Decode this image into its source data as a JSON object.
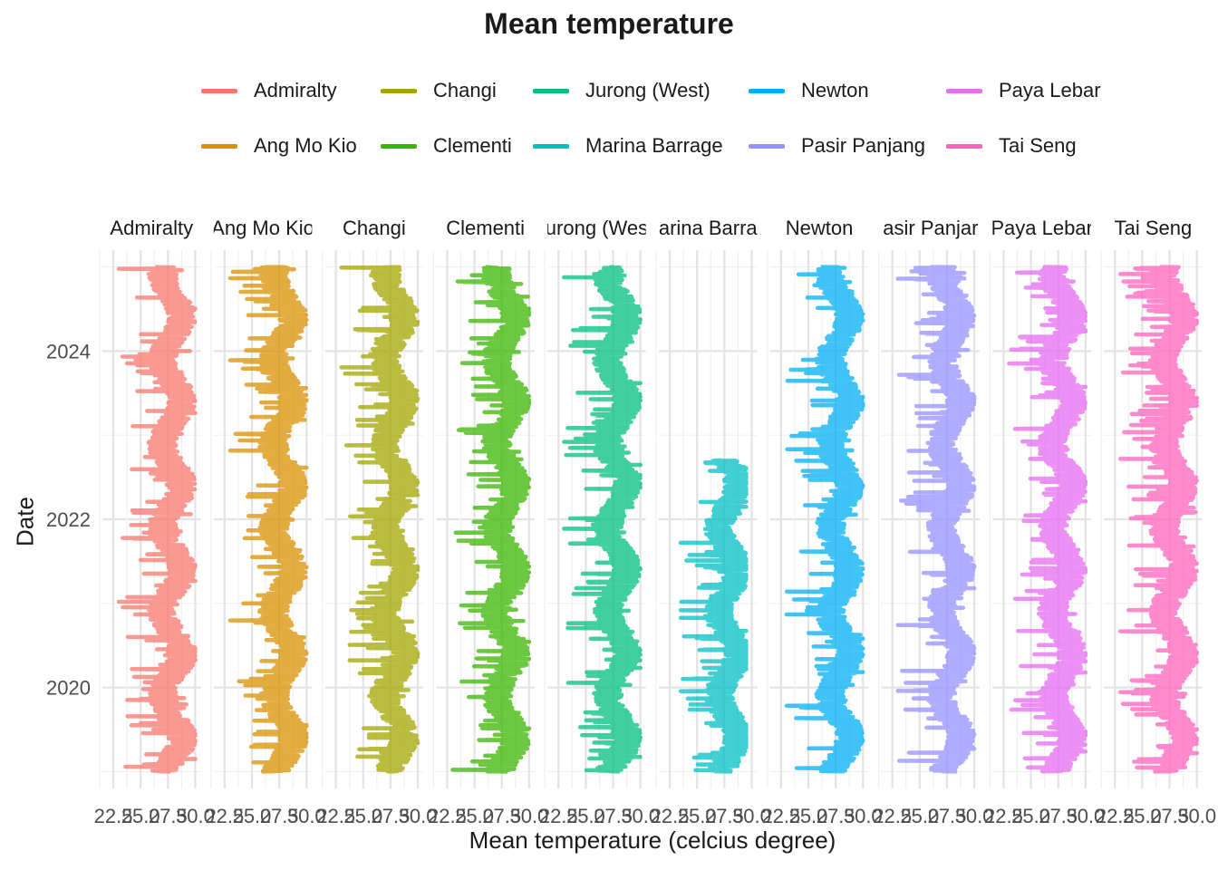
{
  "chart_data": {
    "type": "line",
    "title": "Mean temperature",
    "xlabel": "Mean temperature (celcius degree)",
    "ylabel": "Date",
    "facets": [
      "Admiralty",
      "Ang Mo Kio",
      "Changi",
      "Clementi",
      "Jurong (West)",
      "Marina Barrage",
      "Newton",
      "Pasir Panjang",
      "Paya Lebar",
      "Tai Seng"
    ],
    "facet_strip_labels": [
      "Admiralty",
      "Ang Mo Kio",
      "Changi",
      "Clementi",
      "urong (Wes",
      "arina Barra",
      "Newton",
      "asir Panjar",
      "Paya Lebar",
      "Tai Seng"
    ],
    "x_tick_labels": [
      "22.5",
      "25.0",
      "27.5",
      "30.0"
    ],
    "x_tick_values": [
      22.5,
      25.0,
      27.5,
      30.0
    ],
    "y_tick_labels": [
      "2020",
      "2022",
      "2024"
    ],
    "y_tick_values": [
      2020,
      2022,
      2024
    ],
    "xlim": [
      21.5,
      30.5
    ],
    "ylim": [
      2018.8,
      2025.2
    ],
    "grid": true,
    "legend_position": "top",
    "series": [
      {
        "name": "Admiralty",
        "color": "#F8766D",
        "date_range": [
          2019.0,
          2025.0
        ],
        "temperature_range": [
          23.0,
          30.0
        ]
      },
      {
        "name": "Ang Mo Kio",
        "color": "#D89000",
        "date_range": [
          2019.0,
          2025.0
        ],
        "temperature_range": [
          23.0,
          30.0
        ]
      },
      {
        "name": "Changi",
        "color": "#A3A500",
        "date_range": [
          2019.0,
          2025.0
        ],
        "temperature_range": [
          23.0,
          30.0
        ]
      },
      {
        "name": "Clementi",
        "color": "#39B600",
        "date_range": [
          2019.0,
          2025.0
        ],
        "temperature_range": [
          23.0,
          30.0
        ]
      },
      {
        "name": "Jurong (West)",
        "color": "#00BF7D",
        "date_range": [
          2019.0,
          2025.0
        ],
        "temperature_range": [
          23.0,
          30.0
        ]
      },
      {
        "name": "Marina Barrage",
        "color": "#00BFC4",
        "date_range": [
          2019.0,
          2022.7
        ],
        "temperature_range": [
          23.5,
          29.5
        ]
      },
      {
        "name": "Newton",
        "color": "#00B0F6",
        "date_range": [
          2019.0,
          2025.0
        ],
        "temperature_range": [
          23.0,
          30.0
        ]
      },
      {
        "name": "Pasir Panjang",
        "color": "#9590FF",
        "date_range": [
          2019.0,
          2025.0
        ],
        "temperature_range": [
          23.0,
          30.0
        ]
      },
      {
        "name": "Paya Lebar",
        "color": "#E76BF3",
        "date_range": [
          2019.0,
          2025.0
        ],
        "temperature_range": [
          23.0,
          30.0
        ]
      },
      {
        "name": "Tai Seng",
        "color": "#FF62BC",
        "date_range": [
          2019.0,
          2025.0
        ],
        "temperature_range": [
          23.0,
          30.0
        ]
      }
    ]
  }
}
